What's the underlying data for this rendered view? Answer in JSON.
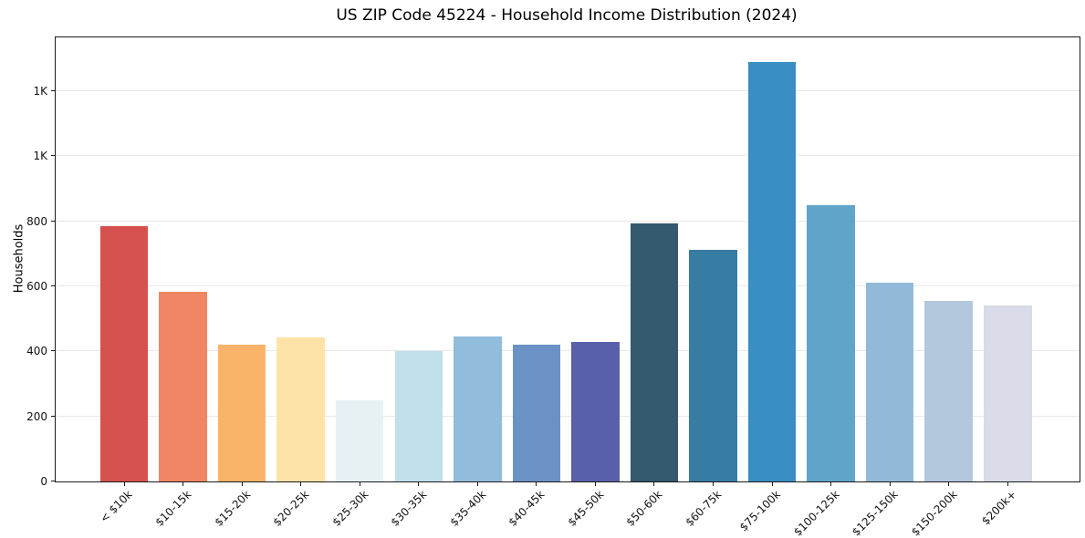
{
  "chart_data": {
    "type": "bar",
    "title": "US ZIP Code 45224 - Household Income Distribution (2024)",
    "xlabel": "",
    "ylabel": "Households",
    "categories": [
      "< $10k",
      "$10-15k",
      "$15-20k",
      "$20-25k",
      "$25-30k",
      "$30-35k",
      "$35-40k",
      "$40-45k",
      "$45-50k",
      "$50-60k",
      "$60-75k",
      "$75-100k",
      "$100-125k",
      "$125-150k",
      "$150-200k",
      "$200k+"
    ],
    "values": [
      785,
      583,
      420,
      443,
      250,
      400,
      445,
      420,
      428,
      792,
      713,
      1290,
      849,
      612,
      554,
      541
    ],
    "bar_colors": [
      "#d5514d",
      "#f08663",
      "#f9b469",
      "#fde3a7",
      "#e6f1f4",
      "#c0dfea",
      "#91bcdb",
      "#6a92c5",
      "#5a5fa9",
      "#35596e",
      "#367ca3",
      "#398ec4",
      "#61a4ca",
      "#93b9d8",
      "#b4c8dd",
      "#d9dbe8"
    ],
    "y_tick_values": [
      0,
      200,
      400,
      600,
      800,
      1000,
      1200
    ],
    "y_tick_labels": [
      "0",
      "200",
      "400",
      "600",
      "800",
      "1K",
      "1K"
    ],
    "ylim": [
      0,
      1365
    ],
    "grid": "horizontal",
    "legend": "none",
    "gridline_color": "#e8e8e8"
  }
}
